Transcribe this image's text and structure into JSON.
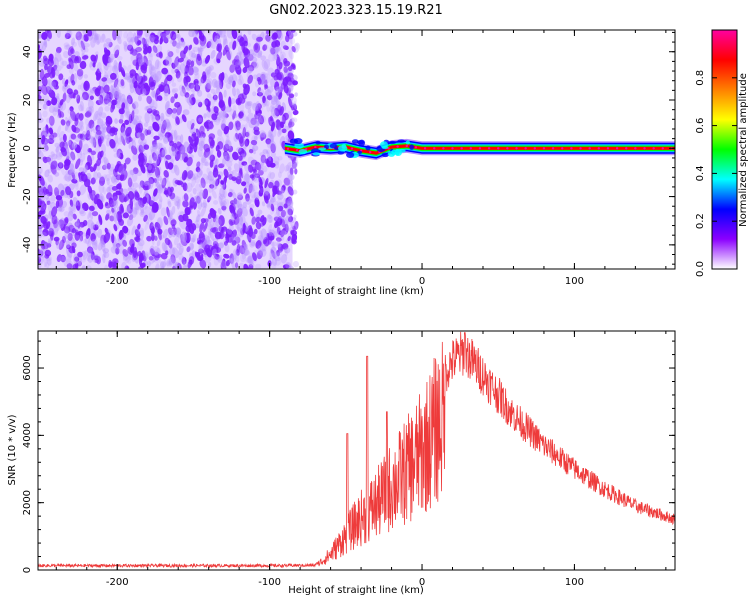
{
  "title": "GN02.2023.323.15.19.R21",
  "chart_data": [
    {
      "type": "heatmap",
      "id": "spectrogram",
      "xlabel": "Height of straight line (km)",
      "ylabel": "Frequency (Hz)",
      "xlim": [
        -252,
        166
      ],
      "ylim": [
        -50,
        49
      ],
      "xticks": [
        -200,
        -100,
        0,
        100
      ],
      "yticks": [
        -40,
        -20,
        0,
        20,
        40
      ],
      "colorbar": {
        "label": "Normalized spectral amplitude",
        "range": [
          0,
          1
        ],
        "ticks": [
          "0.0",
          "0.2",
          "0.4",
          "0.6",
          "0.8"
        ],
        "colormap": "gist_rainbow",
        "stops": [
          "#ffffff",
          "#8b00ff",
          "#0000ff",
          "#00ffff",
          "#00ff00",
          "#ffff00",
          "#ff8000",
          "#ff0000",
          "#ff00a0"
        ]
      },
      "noise_region": {
        "x": [
          -252,
          -85
        ],
        "y": [
          -50,
          49
        ],
        "level": [
          0.1,
          0.3
        ],
        "color": "#7d1eff"
      },
      "signal_band": [
        {
          "x": -90,
          "y": 0.0
        },
        {
          "x": -80,
          "y": -1.0
        },
        {
          "x": -70,
          "y": 0.5
        },
        {
          "x": -60,
          "y": 0.0
        },
        {
          "x": -50,
          "y": 0.5
        },
        {
          "x": -40,
          "y": -1.0
        },
        {
          "x": -30,
          "y": -2.0
        },
        {
          "x": -20,
          "y": 0.5
        },
        {
          "x": -10,
          "y": 1.0
        },
        {
          "x": 0,
          "y": 0.0
        },
        {
          "x": 20,
          "y": 0.0
        },
        {
          "x": 60,
          "y": 0.0
        },
        {
          "x": 100,
          "y": 0.0
        },
        {
          "x": 166,
          "y": 0.0
        }
      ]
    },
    {
      "type": "line",
      "id": "snr",
      "xlabel": "Height of straight line (km)",
      "ylabel": "SNR (10 * v/v)",
      "xlim": [
        -252,
        166
      ],
      "ylim": [
        0,
        7100
      ],
      "xticks": [
        -200,
        -100,
        0,
        100
      ],
      "yticks": [
        0,
        2000,
        4000,
        6000
      ],
      "color": "#ee3b3b",
      "envelope": [
        {
          "x": -252,
          "y": 130
        },
        {
          "x": -200,
          "y": 130
        },
        {
          "x": -100,
          "y": 130
        },
        {
          "x": -70,
          "y": 140
        },
        {
          "x": -60,
          "y": 600
        },
        {
          "x": -50,
          "y": 1300
        },
        {
          "x": -40,
          "y": 2000
        },
        {
          "x": -30,
          "y": 2500
        },
        {
          "x": -20,
          "y": 3200
        },
        {
          "x": -10,
          "y": 3800
        },
        {
          "x": 0,
          "y": 4500
        },
        {
          "x": 10,
          "y": 5500
        },
        {
          "x": 20,
          "y": 6200
        },
        {
          "x": 28,
          "y": 6500
        },
        {
          "x": 40,
          "y": 5800
        },
        {
          "x": 60,
          "y": 4600
        },
        {
          "x": 80,
          "y": 3700
        },
        {
          "x": 100,
          "y": 3000
        },
        {
          "x": 120,
          "y": 2400
        },
        {
          "x": 140,
          "y": 1900
        },
        {
          "x": 166,
          "y": 1500
        }
      ],
      "spikes": [
        {
          "x": -36,
          "y": 6350
        },
        {
          "x": -49,
          "y": 4050
        },
        {
          "x": -23,
          "y": 4700
        },
        {
          "x": 28,
          "y": 7050
        }
      ]
    }
  ]
}
